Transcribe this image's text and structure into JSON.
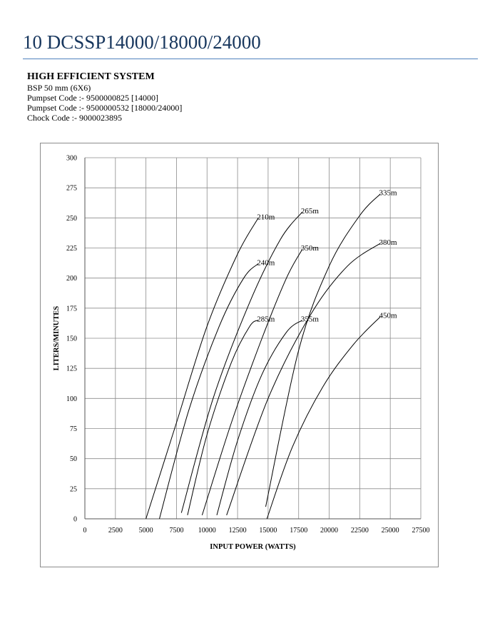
{
  "header": {
    "title": "10 DCSSP14000/18000/24000"
  },
  "info": {
    "heading": "HIGH EFFICIENT SYSTEM",
    "lines": [
      "BSP 50 mm (6X6)",
      "Pumpset Code :- 9500000825 [14000]",
      "Pumpset Code :- 9500000532 [18000/24000]",
      "Chock Code :-  9000023895"
    ]
  },
  "colors": {
    "title": "#17365d",
    "rule": "#4f81bd",
    "grid": "#8c8c8c",
    "curve": "#000000"
  },
  "chart_data": {
    "type": "line",
    "xlabel": "INPUT POWER (WATTS)",
    "ylabel": "LITERS/MINUTES",
    "xlim": [
      0,
      27500
    ],
    "ylim": [
      0,
      300
    ],
    "xticks": [
      0,
      2500,
      5000,
      7500,
      10000,
      12500,
      15000,
      17500,
      20000,
      22500,
      25000,
      27500
    ],
    "yticks": [
      0,
      25,
      50,
      75,
      100,
      125,
      150,
      175,
      200,
      225,
      250,
      275,
      300
    ],
    "xtick_labels": [
      "0",
      "2500",
      "5000",
      "7500",
      "10000",
      "12500",
      "15000",
      "17500",
      "20000",
      "22500",
      "25000",
      "27500"
    ],
    "ytick_labels": [
      "0",
      "25",
      "50",
      "75",
      "100",
      "125",
      "150",
      "175",
      "200",
      "225",
      "250",
      "275",
      "300"
    ],
    "grid": true,
    "series": [
      {
        "name": "210m",
        "x": [
          5000,
          7500,
          10000,
          12500,
          14200
        ],
        "y": [
          0,
          80,
          160,
          220,
          250
        ]
      },
      {
        "name": "240m",
        "x": [
          6100,
          8500,
          11000,
          13000,
          14200
        ],
        "y": [
          0,
          90,
          160,
          200,
          212
        ]
      },
      {
        "name": "265m",
        "x": [
          7900,
          10500,
          13500,
          16000,
          17800
        ],
        "y": [
          5,
          100,
          180,
          232,
          255
        ]
      },
      {
        "name": "285m",
        "x": [
          8400,
          10000,
          12000,
          13500,
          14200
        ],
        "y": [
          3,
          70,
          130,
          160,
          165
        ]
      },
      {
        "name": "335m",
        "x": [
          14800,
          17500,
          20000,
          22500,
          24200
        ],
        "y": [
          10,
          140,
          210,
          252,
          270
        ]
      },
      {
        "name": "350m",
        "x": [
          9600,
          12000,
          14500,
          16500,
          17800
        ],
        "y": [
          3,
          80,
          150,
          200,
          224
        ]
      },
      {
        "name": "355m",
        "x": [
          10800,
          12500,
          14500,
          16500,
          17800
        ],
        "y": [
          3,
          65,
          120,
          155,
          165
        ]
      },
      {
        "name": "380m",
        "x": [
          11600,
          15000,
          18500,
          21500,
          24200
        ],
        "y": [
          3,
          100,
          170,
          210,
          229
        ]
      },
      {
        "name": "450m",
        "x": [
          14900,
          17000,
          19500,
          22000,
          24200
        ],
        "y": [
          0,
          60,
          110,
          145,
          168
        ]
      }
    ]
  }
}
